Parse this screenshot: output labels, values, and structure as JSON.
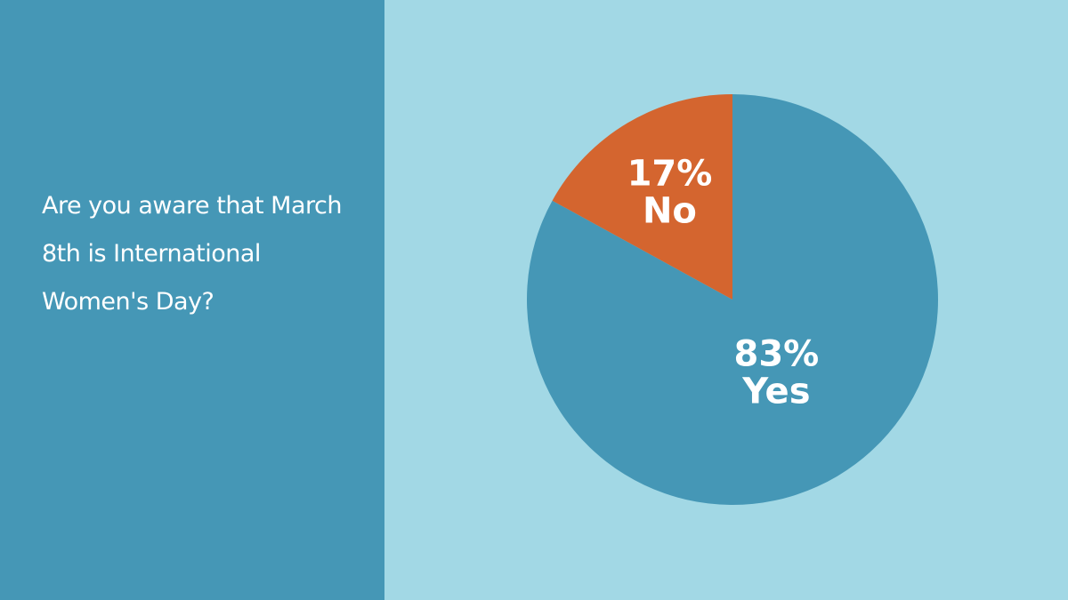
{
  "chart_data": {
    "type": "pie",
    "title": "Are you aware that March 8th is International Women's Day?",
    "categories": [
      "Yes",
      "No"
    ],
    "values": [
      83,
      17
    ],
    "value_labels": [
      "83%",
      "17%"
    ],
    "colors": [
      "#4597b6",
      "#d4652f"
    ]
  }
}
